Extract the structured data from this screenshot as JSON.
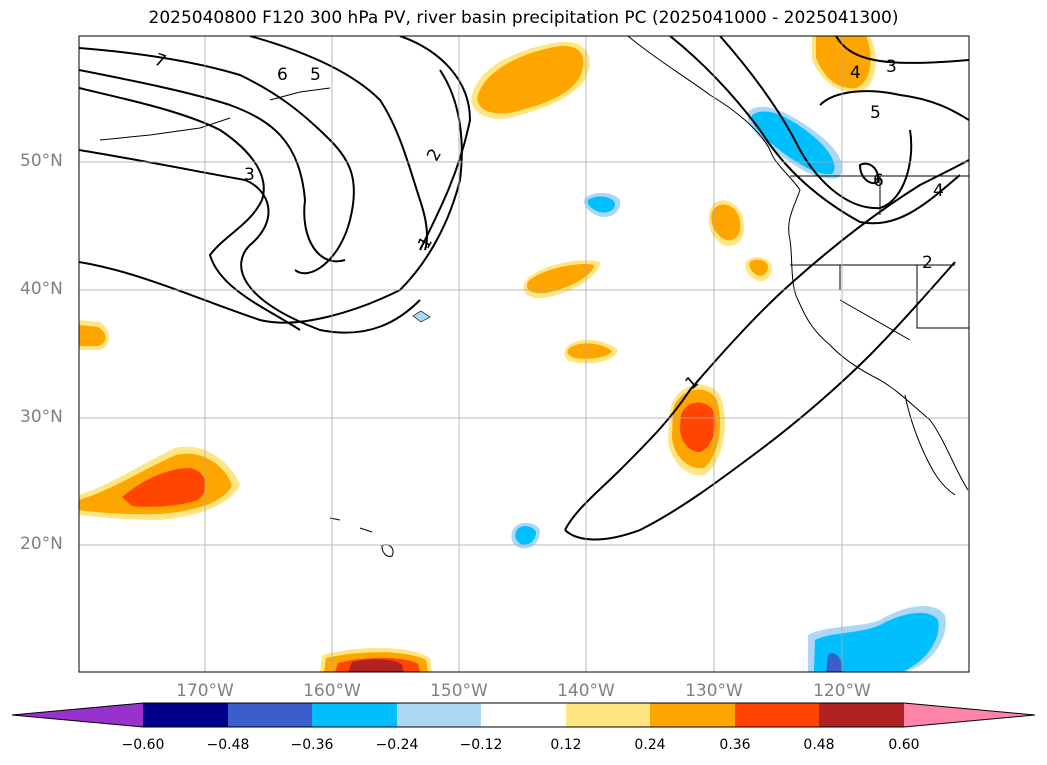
{
  "title": "2025040800 F120 300 hPa PV, river basin precipitation PC (2025041000 - 2025041300)",
  "map": {
    "latitude_labels": [
      "50°N",
      "40°N",
      "30°N",
      "20°N"
    ],
    "longitude_labels": [
      "170°W",
      "160°W",
      "150°W",
      "140°W",
      "130°W",
      "120°W"
    ],
    "pv_contour_labels": [
      "7",
      "6",
      "5",
      "3",
      "2",
      "1",
      "1",
      "4",
      "3",
      "5",
      "6",
      "4",
      "2"
    ]
  },
  "colorbar": {
    "ticks": [
      "−0.60",
      "−0.48",
      "−0.36",
      "−0.24",
      "−0.12",
      "0.12",
      "0.24",
      "0.36",
      "0.48",
      "0.60"
    ],
    "colors": [
      "#9932cc",
      "#00008b",
      "#3a5fcd",
      "#00bfff",
      "#add8f5",
      "#ffffff",
      "#ffe680",
      "#ffa500",
      "#ff4500",
      "#b22222",
      "#ff85a8"
    ]
  }
}
